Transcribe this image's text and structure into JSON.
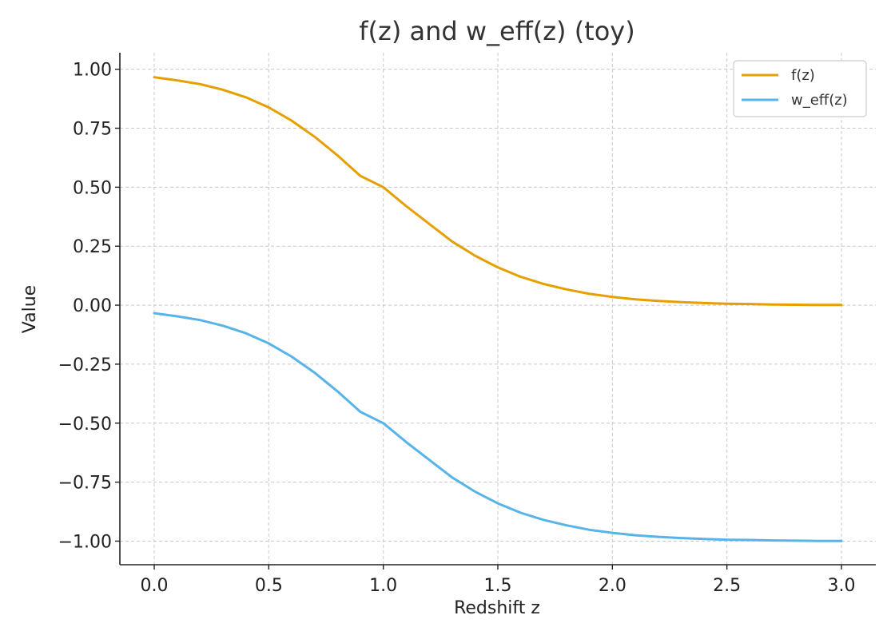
{
  "chart_data": {
    "type": "line",
    "title": "f(z) and w_eff(z) (toy)",
    "xlabel": "Redshift z",
    "ylabel": "Value",
    "xlim": [
      -0.15,
      3.15
    ],
    "ylim": [
      -1.1,
      1.07
    ],
    "xticks": [
      0.0,
      0.5,
      1.0,
      1.5,
      2.0,
      2.5,
      3.0
    ],
    "xtick_labels": [
      "0.0",
      "0.5",
      "1.0",
      "1.5",
      "2.0",
      "2.5",
      "3.0"
    ],
    "yticks": [
      1.0,
      0.75,
      0.5,
      0.25,
      0.0,
      -0.25,
      -0.5,
      -0.75,
      -1.0
    ],
    "ytick_labels": [
      "1.00",
      "0.75",
      "0.50",
      "0.25",
      "0.00",
      "−0.25",
      "−0.50",
      "−0.75",
      "−1.00"
    ],
    "grid": true,
    "legend_position": "top-right",
    "x": [
      0.0,
      0.1,
      0.2,
      0.3,
      0.4,
      0.5,
      0.6,
      0.7,
      0.8,
      0.9,
      1.0,
      1.1,
      1.2,
      1.3,
      1.4,
      1.5,
      1.6,
      1.7,
      1.8,
      1.9,
      2.0,
      2.1,
      2.2,
      2.3,
      2.4,
      2.5,
      2.6,
      2.7,
      2.8,
      2.9,
      3.0
    ],
    "series": [
      {
        "name": "f(z)",
        "color": "#E69F00",
        "values": [
          0.966,
          0.953,
          0.937,
          0.913,
          0.881,
          0.838,
          0.782,
          0.714,
          0.635,
          0.548,
          0.5,
          0.42,
          0.345,
          0.27,
          0.21,
          0.16,
          0.12,
          0.09,
          0.067,
          0.048,
          0.035,
          0.025,
          0.018,
          0.013,
          0.009,
          0.006,
          0.005,
          0.003,
          0.002,
          0.001,
          0.001
        ]
      },
      {
        "name": "w_eff(z)",
        "color": "#56B4E9",
        "values": [
          -0.034,
          -0.047,
          -0.063,
          -0.087,
          -0.119,
          -0.162,
          -0.218,
          -0.286,
          -0.365,
          -0.452,
          -0.5,
          -0.58,
          -0.655,
          -0.73,
          -0.79,
          -0.84,
          -0.88,
          -0.91,
          -0.933,
          -0.952,
          -0.965,
          -0.975,
          -0.982,
          -0.987,
          -0.991,
          -0.994,
          -0.995,
          -0.997,
          -0.998,
          -0.999,
          -0.999
        ]
      }
    ]
  }
}
